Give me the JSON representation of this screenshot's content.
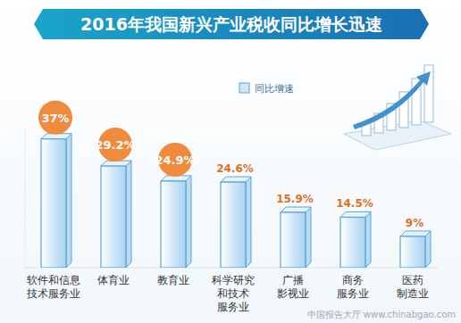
{
  "chart_data": {
    "type": "bar",
    "title": "2016年我国新兴产业税收同比增长迅速",
    "categories": [
      "软件和信息\n技术服务业",
      "体育业",
      "教育业",
      "科学研究\n和技术\n服务业",
      "广播\n影视业",
      "商务\n服务业",
      "医药\n制造业"
    ],
    "series": [
      {
        "name": "同比增速",
        "color": "#cfe7f8",
        "values": [
          37,
          29.2,
          24.9,
          24.6,
          15.9,
          14.5,
          9
        ],
        "value_labels": [
          "37%",
          "29.2%",
          "24.9%",
          "24.6%",
          "15.9%",
          "14.5%",
          "9%"
        ]
      }
    ],
    "ylim": [
      0,
      40
    ],
    "yticks": [],
    "tick_labels": "x",
    "data_labels": true,
    "legend": "top",
    "grid": false,
    "watermark": "中国报告大厅 www.chinabgao.com"
  }
}
